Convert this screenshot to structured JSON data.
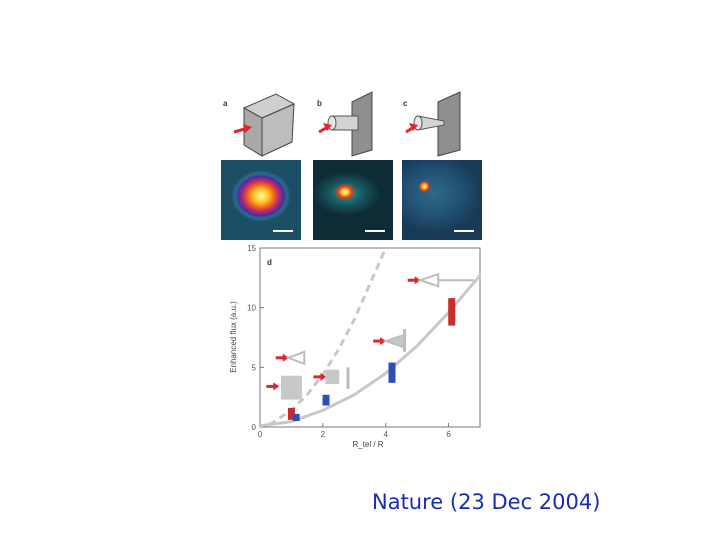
{
  "figure": {
    "panel_labels": [
      "a",
      "b",
      "c",
      "d"
    ],
    "caption": "Nature (23 Dec 2004)"
  },
  "colors": {
    "caption": "#1a2bb5",
    "arrow": "#e0262e",
    "experiment": "#cc2b2b",
    "simulation": "#2f4fb8",
    "model_curve": "#c8c8c8"
  },
  "chart_data": {
    "type": "scatter",
    "panel": "d",
    "title": "",
    "xlabel": "R_tel / R",
    "ylabel": "Enhanced flux (a.u.)",
    "xlim": [
      0,
      7
    ],
    "ylim": [
      0,
      15
    ],
    "xticks": [
      "0",
      "2",
      "4",
      "6"
    ],
    "yticks": [
      "0",
      "5",
      "10",
      "15"
    ],
    "grid": false,
    "series": [
      {
        "name": "",
        "color": "#cc2b2b",
        "points": [
          {
            "x": 1.0,
            "ylow": 0.6,
            "yhigh": 1.6
          },
          {
            "x": 6.1,
            "ylow": 8.5,
            "yhigh": 10.8
          }
        ]
      },
      {
        "name": "",
        "color": "#2f4fb8",
        "points": [
          {
            "x": 1.15,
            "ylow": 0.5,
            "yhigh": 1.1
          },
          {
            "x": 2.1,
            "ylow": 1.8,
            "yhigh": 2.7
          },
          {
            "x": 4.2,
            "ylow": 3.7,
            "yhigh": 5.4
          }
        ]
      },
      {
        "name": "",
        "color": "#c8c8c8",
        "points": [
          {
            "x": 1.0,
            "ylow": 2.3,
            "yhigh": 4.3
          },
          {
            "x": 2.3,
            "ylow": 3.6,
            "yhigh": 4.8
          }
        ]
      }
    ],
    "curves": [
      {
        "style": "solid",
        "x": [
          0,
          1,
          2,
          3,
          4,
          5,
          6,
          7
        ],
        "y": [
          0.1,
          0.45,
          1.4,
          2.7,
          4.5,
          6.8,
          9.6,
          12.7
        ]
      },
      {
        "style": "dashed",
        "x": [
          0.3,
          1,
          1.5,
          2,
          2.5,
          3,
          3.5,
          4.0
        ],
        "y": [
          0.2,
          1.4,
          2.7,
          4.4,
          6.5,
          9.0,
          12.0,
          15.0
        ]
      }
    ]
  }
}
